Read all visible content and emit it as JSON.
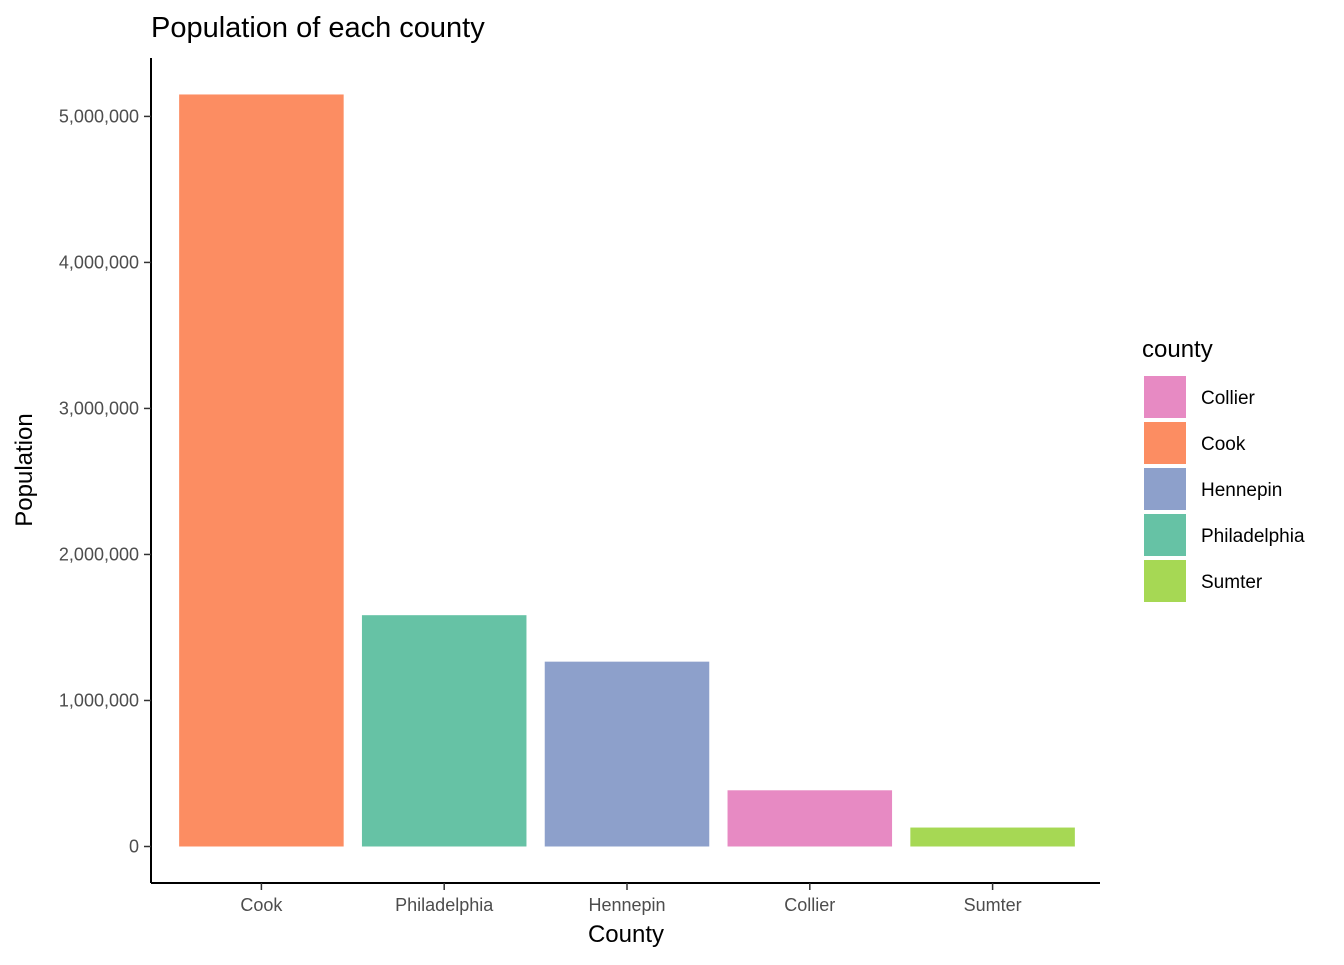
{
  "chart_data": {
    "type": "bar",
    "title": "Population of each county",
    "xlabel": "County",
    "ylabel": "Population",
    "categories": [
      "Cook",
      "Philadelphia",
      "Hennepin",
      "Collier",
      "Sumter"
    ],
    "values": [
      5150233,
      1584064,
      1265843,
      384902,
      129752
    ],
    "colors": [
      "#FC8D62",
      "#66C2A5",
      "#8DA0CB",
      "#E78AC3",
      "#A6D854"
    ],
    "ylim": [
      -250000,
      5400000
    ],
    "yticks": [
      0,
      1000000,
      2000000,
      3000000,
      4000000,
      5000000
    ],
    "ytick_labels": [
      "0",
      "1,000,000",
      "2,000,000",
      "3,000,000",
      "4,000,000",
      "5,000,000"
    ],
    "grid": false,
    "legend": {
      "title": "county",
      "placement": "right",
      "entries": [
        {
          "label": "Collier",
          "color": "#E78AC3"
        },
        {
          "label": "Cook",
          "color": "#FC8D62"
        },
        {
          "label": "Hennepin",
          "color": "#8DA0CB"
        },
        {
          "label": "Philadelphia",
          "color": "#66C2A5"
        },
        {
          "label": "Sumter",
          "color": "#A6D854"
        }
      ]
    }
  }
}
